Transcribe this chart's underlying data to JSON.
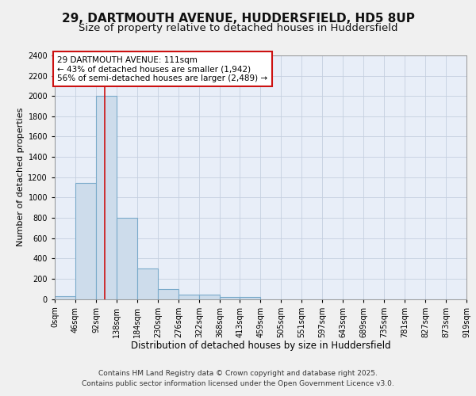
{
  "title_line1": "29, DARTMOUTH AVENUE, HUDDERSFIELD, HD5 8UP",
  "title_line2": "Size of property relative to detached houses in Huddersfield",
  "xlabel": "Distribution of detached houses by size in Huddersfield",
  "ylabel": "Number of detached properties",
  "bin_edges": [
    0,
    46,
    92,
    138,
    184,
    230,
    276,
    322,
    368,
    413,
    459,
    505,
    551,
    597,
    643,
    689,
    735,
    781,
    827,
    873,
    919
  ],
  "bar_heights": [
    30,
    1140,
    2000,
    800,
    300,
    100,
    45,
    40,
    20,
    20,
    0,
    0,
    0,
    0,
    0,
    0,
    0,
    0,
    0,
    0
  ],
  "bar_color": "#cddceb",
  "bar_edgecolor": "#7aaaca",
  "bar_linewidth": 0.8,
  "grid_color": "#c5cfe0",
  "bg_color": "#e8eef8",
  "fig_color": "#f0f0f0",
  "property_size": 111,
  "red_line_color": "#cc1111",
  "annotation_text": "29 DARTMOUTH AVENUE: 111sqm\n← 43% of detached houses are smaller (1,942)\n56% of semi-detached houses are larger (2,489) →",
  "annotation_box_color": "#ffffff",
  "annotation_box_edgecolor": "#cc1111",
  "ylim": [
    0,
    2400
  ],
  "xlim_max": 919,
  "yticks": [
    0,
    200,
    400,
    600,
    800,
    1000,
    1200,
    1400,
    1600,
    1800,
    2000,
    2200,
    2400
  ],
  "xtick_labels": [
    "0sqm",
    "46sqm",
    "92sqm",
    "138sqm",
    "184sqm",
    "230sqm",
    "276sqm",
    "322sqm",
    "368sqm",
    "413sqm",
    "459sqm",
    "505sqm",
    "551sqm",
    "597sqm",
    "643sqm",
    "689sqm",
    "735sqm",
    "781sqm",
    "827sqm",
    "873sqm",
    "919sqm"
  ],
  "footnote_line1": "Contains HM Land Registry data © Crown copyright and database right 2025.",
  "footnote_line2": "Contains public sector information licensed under the Open Government Licence v3.0.",
  "title_fontsize": 11,
  "subtitle_fontsize": 9.5,
  "axis_label_fontsize": 8.5,
  "tick_fontsize": 7,
  "annotation_fontsize": 7.5,
  "footnote_fontsize": 6.5,
  "ylabel_fontsize": 8
}
